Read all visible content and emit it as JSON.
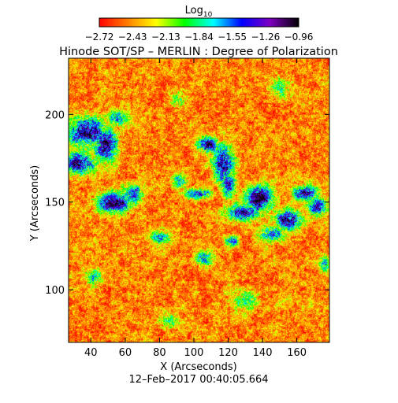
{
  "chart_data": {
    "type": "heatmap",
    "title": "Hinode SOT/SP – MERLIN : Degree of Polarization",
    "xlabel": "X (Arcseconds)",
    "ylabel": "Y (Arcseconds)",
    "xlim": [
      27,
      179
    ],
    "ylim": [
      70,
      232
    ],
    "x_ticks": [
      40,
      60,
      80,
      100,
      120,
      140,
      160
    ],
    "y_ticks": [
      100,
      150,
      200
    ],
    "timestamp": "12–Feb–2017 00:40:05.664",
    "colorbar": {
      "title_base": "Log",
      "title_sub": "10",
      "ticks": [
        "−2.72",
        "−2.43",
        "−2.13",
        "−1.84",
        "−1.55",
        "−1.26",
        "−0.96"
      ],
      "range": [
        -2.72,
        -0.96
      ],
      "colors": [
        "#ff0000",
        "#ff7f00",
        "#ffff00",
        "#00ff00",
        "#00ffff",
        "#0000ff",
        "#8000c0",
        "#000000"
      ]
    },
    "high_polarization_patches": [
      {
        "x": 38,
        "y": 190,
        "sx": 7,
        "sy": 6,
        "a": 1.0
      },
      {
        "x": 33,
        "y": 172,
        "sx": 6,
        "sy": 4,
        "a": 1.0
      },
      {
        "x": 48,
        "y": 183,
        "sx": 5,
        "sy": 7,
        "a": 0.9
      },
      {
        "x": 55,
        "y": 198,
        "sx": 4,
        "sy": 3,
        "a": 0.6
      },
      {
        "x": 53,
        "y": 150,
        "sx": 7,
        "sy": 4,
        "a": 1.0
      },
      {
        "x": 64,
        "y": 155,
        "sx": 4,
        "sy": 4,
        "a": 0.7
      },
      {
        "x": 108,
        "y": 183,
        "sx": 4,
        "sy": 3,
        "a": 1.0
      },
      {
        "x": 117,
        "y": 172,
        "sx": 4,
        "sy": 7,
        "a": 1.0
      },
      {
        "x": 120,
        "y": 160,
        "sx": 3,
        "sy": 5,
        "a": 0.8
      },
      {
        "x": 102,
        "y": 155,
        "sx": 5,
        "sy": 2,
        "a": 0.8
      },
      {
        "x": 92,
        "y": 162,
        "sx": 3,
        "sy": 3,
        "a": 0.6
      },
      {
        "x": 138,
        "y": 152,
        "sx": 5,
        "sy": 5,
        "a": 1.0
      },
      {
        "x": 128,
        "y": 144,
        "sx": 7,
        "sy": 3,
        "a": 0.9
      },
      {
        "x": 155,
        "y": 140,
        "sx": 5,
        "sy": 4,
        "a": 1.0
      },
      {
        "x": 165,
        "y": 155,
        "sx": 5,
        "sy": 3,
        "a": 0.9
      },
      {
        "x": 172,
        "y": 148,
        "sx": 4,
        "sy": 4,
        "a": 0.8
      },
      {
        "x": 145,
        "y": 132,
        "sx": 5,
        "sy": 3,
        "a": 0.7
      },
      {
        "x": 122,
        "y": 128,
        "sx": 3,
        "sy": 2,
        "a": 0.7
      },
      {
        "x": 106,
        "y": 118,
        "sx": 4,
        "sy": 3,
        "a": 0.6
      },
      {
        "x": 80,
        "y": 130,
        "sx": 4,
        "sy": 3,
        "a": 0.5
      },
      {
        "x": 176,
        "y": 115,
        "sx": 2,
        "sy": 3,
        "a": 0.6
      },
      {
        "x": 42,
        "y": 107,
        "sx": 3,
        "sy": 3,
        "a": 0.5
      },
      {
        "x": 90,
        "y": 208,
        "sx": 3,
        "sy": 3,
        "a": 0.45
      },
      {
        "x": 130,
        "y": 95,
        "sx": 5,
        "sy": 4,
        "a": 0.45
      },
      {
        "x": 85,
        "y": 82,
        "sx": 4,
        "sy": 3,
        "a": 0.4
      },
      {
        "x": 150,
        "y": 215,
        "sx": 4,
        "sy": 4,
        "a": 0.4
      }
    ]
  }
}
